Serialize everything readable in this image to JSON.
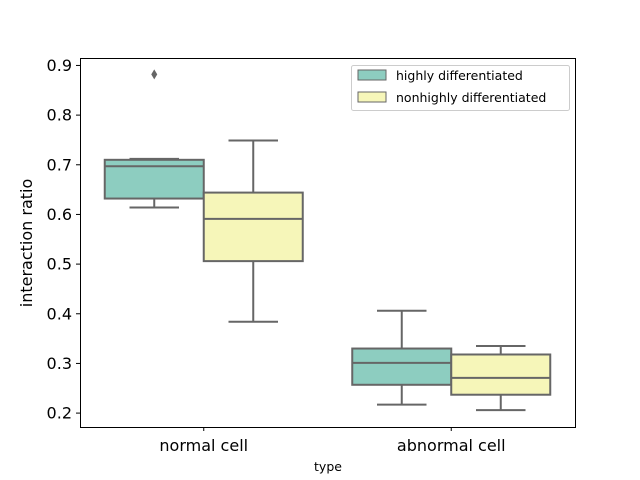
{
  "chart_data": {
    "type": "box",
    "title": "",
    "xlabel": "type",
    "ylabel": "interaction ratio",
    "categories": [
      "normal cell",
      "abnormal cell"
    ],
    "ylim": [
      0.172,
      0.915
    ],
    "yticks": [
      0.2,
      0.3,
      0.4,
      0.5,
      0.6,
      0.7,
      0.8,
      0.9
    ],
    "ytick_labels": [
      "0.2",
      "0.3",
      "0.4",
      "0.5",
      "0.6",
      "0.7",
      "0.8",
      "0.9"
    ],
    "grid": false,
    "legend_position": "top-right",
    "series": [
      {
        "name": "highly differentiated",
        "color": "#8dcdc0",
        "boxes": [
          {
            "category": "normal cell",
            "whisker_low": 0.614,
            "q1": 0.632,
            "median": 0.697,
            "q3": 0.71,
            "whisker_high": 0.712,
            "outliers": [
              0.882
            ]
          },
          {
            "category": "abnormal cell",
            "whisker_low": 0.217,
            "q1": 0.257,
            "median": 0.301,
            "q3": 0.33,
            "whisker_high": 0.406,
            "outliers": []
          }
        ]
      },
      {
        "name": "nonhighly differentiated",
        "color": "#f6f6b9",
        "boxes": [
          {
            "category": "normal cell",
            "whisker_low": 0.384,
            "q1": 0.506,
            "median": 0.591,
            "q3": 0.644,
            "whisker_high": 0.749,
            "outliers": []
          },
          {
            "category": "abnormal cell",
            "whisker_low": 0.206,
            "q1": 0.237,
            "median": 0.271,
            "q3": 0.318,
            "whisker_high": 0.335,
            "outliers": []
          }
        ]
      }
    ]
  }
}
